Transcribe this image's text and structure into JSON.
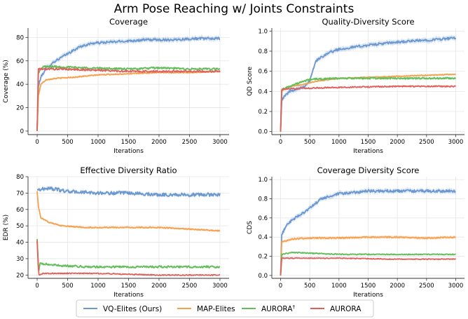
{
  "figure": {
    "title": "Arm Pose Reaching w/ Joints Constraints"
  },
  "legend": [
    {
      "name": "VQ-Elites (Ours)",
      "color": "#6a98cf"
    },
    {
      "name": "MAP-Elites",
      "color": "#f6a04d"
    },
    {
      "name": "AURORA",
      "sup": "†",
      "color": "#62bd5a"
    },
    {
      "name": "AURORA",
      "color": "#e0605c"
    }
  ],
  "chart_data": [
    {
      "type": "line",
      "title": "Coverage",
      "xlabel": "Iterations",
      "ylabel": "Coverage (%)",
      "xlim": [
        -150,
        3150
      ],
      "ylim": [
        -3,
        88
      ],
      "xticks": [
        0,
        500,
        1000,
        1500,
        2000,
        2500,
        3000
      ],
      "yticks": [
        0,
        20,
        40,
        60,
        80
      ],
      "grid": true,
      "series": [
        {
          "name": "VQ-Elites (Ours)",
          "color": "#6a98cf",
          "band": 2.5,
          "noise": 1.0,
          "points": [
            [
              0,
              0
            ],
            [
              20,
              38
            ],
            [
              60,
              46
            ],
            [
              150,
              54
            ],
            [
              300,
              60
            ],
            [
              500,
              66
            ],
            [
              700,
              72
            ],
            [
              900,
              75
            ],
            [
              1200,
              76
            ],
            [
              1500,
              77
            ],
            [
              1800,
              78
            ],
            [
              2200,
              78
            ],
            [
              2600,
              79
            ],
            [
              3000,
              79
            ]
          ]
        },
        {
          "name": "MAP-Elites",
          "color": "#f6a04d",
          "band": 1.0,
          "noise": 0.4,
          "points": [
            [
              0,
              0
            ],
            [
              20,
              30
            ],
            [
              60,
              40
            ],
            [
              150,
              44
            ],
            [
              300,
              45
            ],
            [
              600,
              46
            ],
            [
              1000,
              48
            ],
            [
              1500,
              49
            ],
            [
              2000,
              50
            ],
            [
              2500,
              50
            ],
            [
              3000,
              51
            ]
          ]
        },
        {
          "name": "AURORA†",
          "color": "#62bd5a",
          "band": 1.0,
          "noise": 0.8,
          "points": [
            [
              0,
              0
            ],
            [
              20,
              50
            ],
            [
              100,
              55
            ],
            [
              300,
              55
            ],
            [
              800,
              54
            ],
            [
              1500,
              53
            ],
            [
              2000,
              54
            ],
            [
              2500,
              53
            ],
            [
              3000,
              53
            ]
          ]
        },
        {
          "name": "AURORA",
          "color": "#e0605c",
          "band": 1.0,
          "noise": 0.8,
          "points": [
            [
              0,
              0
            ],
            [
              20,
              53
            ],
            [
              100,
              53
            ],
            [
              400,
              53
            ],
            [
              1000,
              52
            ],
            [
              1500,
              51
            ],
            [
              2000,
              51
            ],
            [
              2500,
              51
            ],
            [
              3000,
              51
            ]
          ]
        }
      ]
    },
    {
      "type": "line",
      "title": "Quality-Diversity Score",
      "xlabel": "Iterations",
      "ylabel": "QD Score",
      "xlim": [
        -150,
        3150
      ],
      "ylim": [
        -0.03,
        1.03
      ],
      "xticks": [
        0,
        500,
        1000,
        1500,
        2000,
        2500,
        3000
      ],
      "yticks": [
        0.0,
        0.2,
        0.4,
        0.6,
        0.8,
        1.0
      ],
      "grid": true,
      "series": [
        {
          "name": "VQ-Elites (Ours)",
          "color": "#6a98cf",
          "band": 0.03,
          "noise": 0.012,
          "points": [
            [
              0,
              0
            ],
            [
              20,
              0.32
            ],
            [
              150,
              0.4
            ],
            [
              400,
              0.45
            ],
            [
              500,
              0.5
            ],
            [
              600,
              0.7
            ],
            [
              800,
              0.78
            ],
            [
              1000,
              0.82
            ],
            [
              1500,
              0.86
            ],
            [
              2000,
              0.89
            ],
            [
              2500,
              0.91
            ],
            [
              3000,
              0.93
            ]
          ]
        },
        {
          "name": "MAP-Elites",
          "color": "#f6a04d",
          "band": 0.01,
          "noise": 0.004,
          "points": [
            [
              0,
              0
            ],
            [
              20,
              0.4
            ],
            [
              100,
              0.44
            ],
            [
              300,
              0.46
            ],
            [
              600,
              0.5
            ],
            [
              1000,
              0.53
            ],
            [
              1500,
              0.54
            ],
            [
              2000,
              0.55
            ],
            [
              2500,
              0.56
            ],
            [
              3000,
              0.57
            ]
          ]
        },
        {
          "name": "AURORA†",
          "color": "#62bd5a",
          "band": 0.015,
          "noise": 0.008,
          "points": [
            [
              0,
              0
            ],
            [
              20,
              0.42
            ],
            [
              200,
              0.46
            ],
            [
              500,
              0.52
            ],
            [
              1000,
              0.53
            ],
            [
              2000,
              0.53
            ],
            [
              3000,
              0.53
            ]
          ]
        },
        {
          "name": "AURORA",
          "color": "#e0605c",
          "band": 0.01,
          "noise": 0.006,
          "points": [
            [
              0,
              0
            ],
            [
              20,
              0.42
            ],
            [
              300,
              0.43
            ],
            [
              1000,
              0.44
            ],
            [
              2000,
              0.45
            ],
            [
              3000,
              0.45
            ]
          ]
        }
      ]
    },
    {
      "type": "line",
      "title": "Effective Diversity Ratio",
      "xlabel": "Iterations",
      "ylabel": "EDR (%)",
      "xlim": [
        -150,
        3150
      ],
      "ylim": [
        18,
        80
      ],
      "xticks": [
        0,
        500,
        1000,
        1500,
        2000,
        2500,
        3000
      ],
      "yticks": [
        20,
        30,
        40,
        50,
        60,
        70,
        80
      ],
      "grid": true,
      "series": [
        {
          "name": "VQ-Elites (Ours)",
          "color": "#6a98cf",
          "band": 1.2,
          "noise": 1.0,
          "points": [
            [
              0,
              72
            ],
            [
              200,
              73
            ],
            [
              500,
              71
            ],
            [
              1000,
              70
            ],
            [
              1500,
              70
            ],
            [
              2000,
              69
            ],
            [
              2500,
              69
            ],
            [
              3000,
              69
            ]
          ]
        },
        {
          "name": "MAP-Elites",
          "color": "#f6a04d",
          "band": 0.8,
          "noise": 0.3,
          "points": [
            [
              0,
              71
            ],
            [
              20,
              62
            ],
            [
              60,
              55
            ],
            [
              200,
              52
            ],
            [
              400,
              50
            ],
            [
              800,
              49
            ],
            [
              1500,
              49
            ],
            [
              2000,
              49
            ],
            [
              2500,
              48
            ],
            [
              3000,
              47
            ]
          ]
        },
        {
          "name": "AURORA†",
          "color": "#62bd5a",
          "band": 0.8,
          "noise": 0.6,
          "points": [
            [
              0,
              42
            ],
            [
              25,
              22
            ],
            [
              50,
              27
            ],
            [
              300,
              26
            ],
            [
              800,
              25
            ],
            [
              1500,
              25
            ],
            [
              2500,
              25
            ],
            [
              3000,
              25
            ]
          ]
        },
        {
          "name": "AURORA",
          "color": "#e0605c",
          "band": 0.4,
          "noise": 0.3,
          "points": [
            [
              0,
              41
            ],
            [
              25,
              20
            ],
            [
              100,
              21
            ],
            [
              500,
              21
            ],
            [
              1000,
              21
            ],
            [
              2000,
              20
            ],
            [
              3000,
              20
            ]
          ]
        }
      ]
    },
    {
      "type": "line",
      "title": "Coverage Diversity Score",
      "xlabel": "Iterations",
      "ylabel": "CDS",
      "xlim": [
        -150,
        3150
      ],
      "ylim": [
        -0.03,
        1.03
      ],
      "xticks": [
        0,
        500,
        1000,
        1500,
        2000,
        2500,
        3000
      ],
      "yticks": [
        0.0,
        0.2,
        0.4,
        0.6,
        0.8,
        1.0
      ],
      "grid": true,
      "series": [
        {
          "name": "VQ-Elites (Ours)",
          "color": "#6a98cf",
          "band": 0.03,
          "noise": 0.014,
          "points": [
            [
              0,
              0
            ],
            [
              20,
              0.42
            ],
            [
              100,
              0.53
            ],
            [
              300,
              0.62
            ],
            [
              500,
              0.7
            ],
            [
              700,
              0.8
            ],
            [
              1000,
              0.85
            ],
            [
              1500,
              0.88
            ],
            [
              2000,
              0.88
            ],
            [
              2500,
              0.88
            ],
            [
              3000,
              0.88
            ]
          ]
        },
        {
          "name": "MAP-Elites",
          "color": "#f6a04d",
          "band": 0.02,
          "noise": 0.006,
          "points": [
            [
              0,
              0
            ],
            [
              20,
              0.35
            ],
            [
              200,
              0.38
            ],
            [
              500,
              0.39
            ],
            [
              1000,
              0.39
            ],
            [
              1500,
              0.4
            ],
            [
              2000,
              0.4
            ],
            [
              2500,
              0.39
            ],
            [
              3000,
              0.4
            ]
          ]
        },
        {
          "name": "AURORA†",
          "color": "#62bd5a",
          "band": 0.01,
          "noise": 0.005,
          "points": [
            [
              0,
              0
            ],
            [
              20,
              0.22
            ],
            [
              200,
              0.24
            ],
            [
              600,
              0.23
            ],
            [
              1000,
              0.22
            ],
            [
              2000,
              0.22
            ],
            [
              3000,
              0.22
            ]
          ]
        },
        {
          "name": "AURORA",
          "color": "#e0605c",
          "band": 0.006,
          "noise": 0.004,
          "points": [
            [
              0,
              0
            ],
            [
              20,
              0.18
            ],
            [
              500,
              0.18
            ],
            [
              1000,
              0.18
            ],
            [
              2000,
              0.17
            ],
            [
              3000,
              0.17
            ]
          ]
        }
      ]
    }
  ]
}
